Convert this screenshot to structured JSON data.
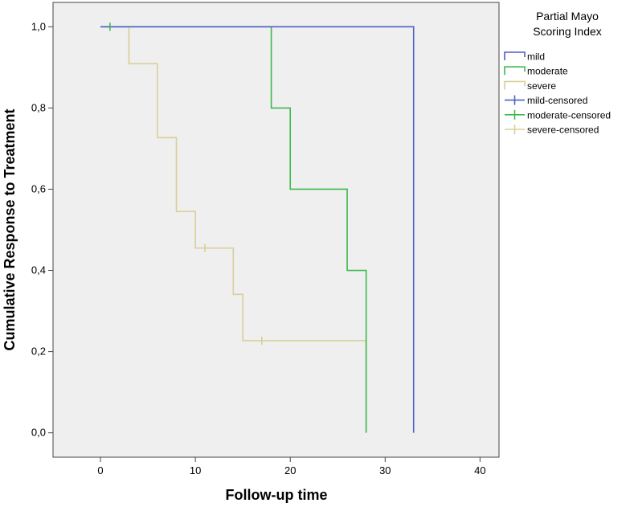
{
  "chart_data": {
    "type": "line",
    "subtype": "kaplan-meier step plot",
    "xlabel": "Follow-up time",
    "ylabel": "Cumulative Response to Treatment",
    "xlim": [
      -5,
      42
    ],
    "ylim": [
      -0.06,
      1.06
    ],
    "xticks": [
      0,
      10,
      20,
      30,
      40
    ],
    "xtick_labels": [
      "0",
      "10",
      "20",
      "30",
      "40"
    ],
    "yticks": [
      0,
      0.2,
      0.4,
      0.6,
      0.8,
      1.0
    ],
    "ytick_labels": [
      "0,0",
      "0,2",
      "0,4",
      "0,6",
      "0,8",
      "1,0"
    ],
    "grid": false,
    "plot_background": "#efefef",
    "legend": {
      "title_lines": [
        "Partial Mayo",
        "Scoring Index"
      ],
      "placement": "right",
      "entries": [
        {
          "label": "mild",
          "kind": "step",
          "color": "#4f5fc8"
        },
        {
          "label": "moderate",
          "kind": "step",
          "color": "#3cba4c"
        },
        {
          "label": "severe",
          "kind": "step",
          "color": "#d8cf9a"
        },
        {
          "label": "mild-censored",
          "kind": "censor",
          "color": "#4f5fc8"
        },
        {
          "label": "moderate-censored",
          "kind": "censor",
          "color": "#3cba4c"
        },
        {
          "label": "severe-censored",
          "kind": "censor",
          "color": "#d8cf9a"
        }
      ]
    },
    "series": [
      {
        "name": "mild",
        "color": "#4f5fc8",
        "steps": [
          [
            0,
            1.0
          ],
          [
            33,
            0.0
          ]
        ],
        "end_x": 33,
        "censored": []
      },
      {
        "name": "moderate",
        "color": "#3cba4c",
        "steps": [
          [
            0,
            1.0
          ],
          [
            18,
            0.8
          ],
          [
            20,
            0.6
          ],
          [
            26,
            0.4
          ],
          [
            28,
            0.0
          ]
        ],
        "end_x": 28,
        "censored": [
          [
            1,
            1.0
          ]
        ]
      },
      {
        "name": "severe",
        "color": "#d8cf9a",
        "steps": [
          [
            0,
            1.0
          ],
          [
            3,
            0.909
          ],
          [
            6,
            0.727
          ],
          [
            8,
            0.545
          ],
          [
            10,
            0.455
          ],
          [
            14,
            0.341
          ],
          [
            15,
            0.227
          ],
          [
            28,
            0.0
          ]
        ],
        "end_x": 28,
        "censored": [
          [
            11,
            0.455
          ],
          [
            17,
            0.227
          ]
        ]
      }
    ]
  }
}
